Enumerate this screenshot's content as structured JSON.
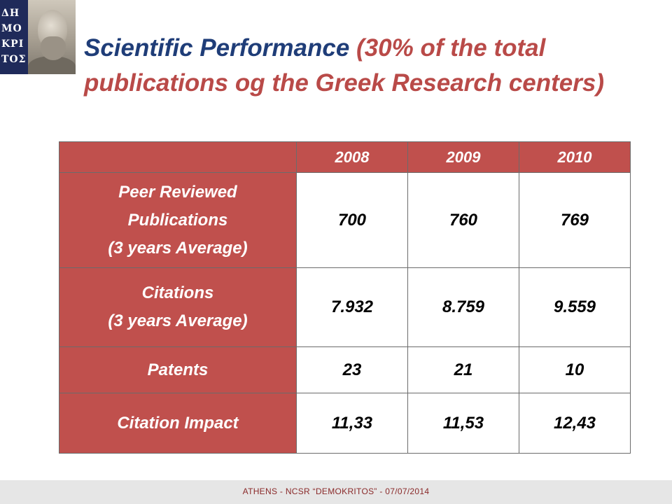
{
  "logo": {
    "letters": [
      "ΔΗ",
      "ΜΟ",
      "ΚΡΙ",
      "ΤΟΣ"
    ]
  },
  "title": {
    "main": "Scientific Performance",
    "sub_first": "(30% of the total",
    "sub_second": "publications og the Greek Research centers)"
  },
  "table": {
    "header": [
      "",
      "2008",
      "2009",
      "2010"
    ],
    "rows": [
      {
        "label_lines": [
          "Peer Reviewed",
          "Publications",
          "(3 years Average)"
        ],
        "values": [
          "700",
          "760",
          "769"
        ]
      },
      {
        "label_lines": [
          "Citations",
          "(3 years Average)"
        ],
        "values": [
          "7.932",
          "8.759",
          "9.559"
        ]
      },
      {
        "label_lines": [
          "Patents"
        ],
        "values": [
          "23",
          "21",
          "10"
        ]
      },
      {
        "label_lines": [
          "Citation Impact"
        ],
        "values": [
          "11,33",
          "11,53",
          "12,43"
        ]
      }
    ]
  },
  "footer": {
    "text": "ATHENS  - NCSR “DEMOKRITOS” - 07/07/2014"
  },
  "colors": {
    "title_blue": "#1f3d78",
    "title_red": "#b94a48",
    "table_header": "#c0504d",
    "logo_bg": "#1f2a5a"
  }
}
